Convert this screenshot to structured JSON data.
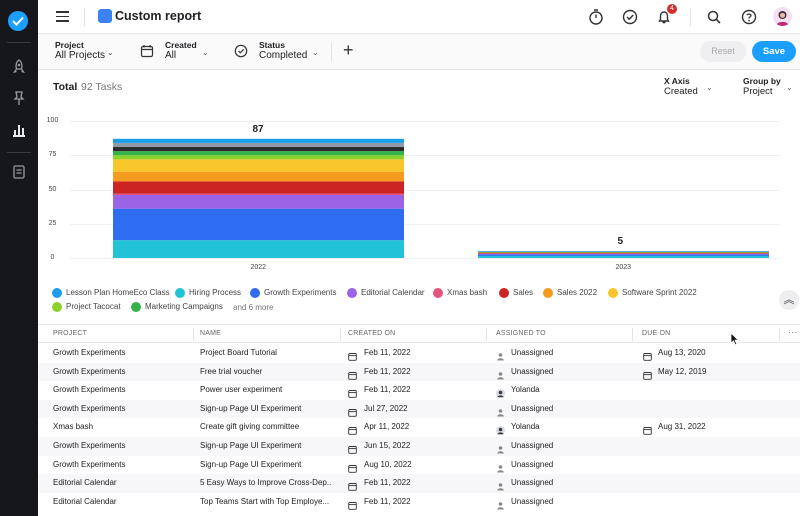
{
  "topbar": {
    "report_title": "Custom report",
    "notification_count": "4"
  },
  "filters": [
    {
      "label": "Project",
      "value": "All Projects"
    },
    {
      "label": "Created",
      "value": "All"
    },
    {
      "label": "Status",
      "value": "Completed"
    }
  ],
  "actions": {
    "reset_label": "Reset",
    "save_label": "Save"
  },
  "summary": {
    "total_label": "Total",
    "tasks_label": "92 Tasks"
  },
  "axis_controls": [
    {
      "label": "X Axis",
      "value": "Created"
    },
    {
      "label": "Group by",
      "value": "Project"
    }
  ],
  "chart_data": {
    "type": "bar",
    "stacked": true,
    "categories": [
      "2022",
      "2023"
    ],
    "totals": [
      87,
      5
    ],
    "yticks": [
      "0",
      "25",
      "50",
      "75",
      "100"
    ],
    "ylim": [
      0,
      100
    ],
    "series": [
      {
        "name": "Hiring Process",
        "color": "#22c3d6",
        "values": [
          13,
          1.5
        ]
      },
      {
        "name": "Growth Experiments",
        "color": "#2f6df0",
        "values": [
          23,
          1.2
        ]
      },
      {
        "name": "Editorial Calendar",
        "color": "#9b63e6",
        "values": [
          10,
          0.6
        ]
      },
      {
        "name": "Xmas bash",
        "color": "#e6527e",
        "values": [
          1,
          0.2
        ]
      },
      {
        "name": "Sales",
        "color": "#cc2323",
        "values": [
          9,
          0.3
        ]
      },
      {
        "name": "Sales 2022",
        "color": "#f59c1e",
        "values": [
          7,
          0.2
        ]
      },
      {
        "name": "Software Sprint 2022",
        "color": "#f7c62a",
        "values": [
          9,
          0.2
        ]
      },
      {
        "name": "Project Tacocat",
        "color": "#8dd12a",
        "values": [
          3,
          0.2
        ]
      },
      {
        "name": "Marketing Campaigns",
        "color": "#35b34a",
        "values": [
          3,
          0.2
        ]
      },
      {
        "name": "",
        "color": "#2b2b2b",
        "values": [
          3,
          0.1
        ]
      },
      {
        "name": "",
        "color": "#8e9aa8",
        "values": [
          3,
          0.1
        ]
      },
      {
        "name": "Lesson Plan HomeEco Class",
        "color": "#1a9fef",
        "values": [
          3,
          0.2
        ]
      }
    ]
  },
  "legend": {
    "items": [
      {
        "name": "Lesson Plan HomeEco Class",
        "color": "#1a9fef"
      },
      {
        "name": "Hiring Process",
        "color": "#22c3d6"
      },
      {
        "name": "Growth Experiments",
        "color": "#2f6df0"
      },
      {
        "name": "Editorial Calendar",
        "color": "#9b63e6"
      },
      {
        "name": "Xmas bash",
        "color": "#e6527e"
      },
      {
        "name": "Sales",
        "color": "#cc2323"
      },
      {
        "name": "Sales 2022",
        "color": "#f59c1e"
      },
      {
        "name": "Software Sprint 2022",
        "color": "#f7c62a"
      },
      {
        "name": "Project Tacocat",
        "color": "#8dd12a"
      },
      {
        "name": "Marketing Campaigns",
        "color": "#35b34a"
      }
    ],
    "more": "and 6 more"
  },
  "table": {
    "columns": [
      "PROJECT",
      "NAME",
      "CREATED ON",
      "ASSIGNED TO",
      "DUE ON"
    ],
    "rows": [
      {
        "project": "Growth Experiments",
        "name": "Project Board Tutorial",
        "created": "Feb 11, 2022",
        "assignee": "Unassigned",
        "avatar": false,
        "due": "Aug 13, 2020"
      },
      {
        "project": "Growth Experiments",
        "name": "Free trial voucher",
        "created": "Feb 11, 2022",
        "assignee": "Unassigned",
        "avatar": false,
        "due": "May 12, 2019"
      },
      {
        "project": "Growth Experiments",
        "name": "Power user experiment",
        "created": "Feb 11, 2022",
        "assignee": "Yolanda",
        "avatar": true,
        "due": ""
      },
      {
        "project": "Growth Experiments",
        "name": "Sign-up Page UI Experiment",
        "created": "Jul 27, 2022",
        "assignee": "Unassigned",
        "avatar": false,
        "due": ""
      },
      {
        "project": "Xmas bash",
        "name": "Create gift giving committee",
        "created": "Apr 11, 2022",
        "assignee": "Yolanda",
        "avatar": true,
        "due": "Aug 31, 2022"
      },
      {
        "project": "Growth Experiments",
        "name": "Sign-up Page UI Experiment",
        "created": "Jun 15, 2022",
        "assignee": "Unassigned",
        "avatar": false,
        "due": ""
      },
      {
        "project": "Growth Experiments",
        "name": "Sign-up Page UI Experiment",
        "created": "Aug 10, 2022",
        "assignee": "Unassigned",
        "avatar": false,
        "due": ""
      },
      {
        "project": "Editorial Calendar",
        "name": "5 Easy Ways to Improve Cross-Dep...",
        "created": "Feb 11, 2022",
        "assignee": "Unassigned",
        "avatar": false,
        "due": ""
      },
      {
        "project": "Editorial Calendar",
        "name": "Top Teams Start with Top Employe...",
        "created": "Feb 11, 2022",
        "assignee": "Unassigned",
        "avatar": false,
        "due": ""
      }
    ]
  }
}
